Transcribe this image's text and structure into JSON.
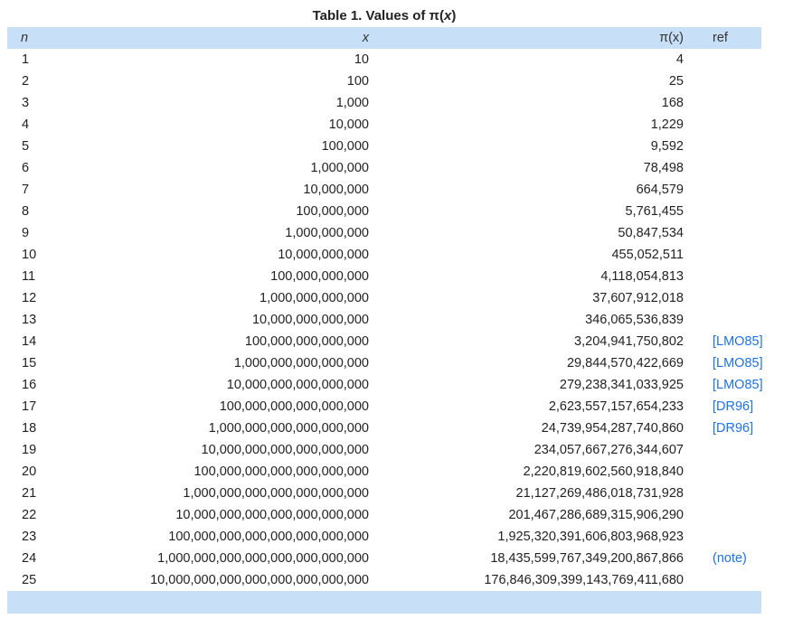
{
  "caption": {
    "prefix": "Table 1.  Values of π(",
    "var": "x",
    "suffix": ")"
  },
  "header": {
    "n": "n",
    "x": "x",
    "pi": "π(x)",
    "ref": "ref"
  },
  "rows": [
    {
      "n": "1",
      "x": "10",
      "pi": "4",
      "ref": ""
    },
    {
      "n": "2",
      "x": "100",
      "pi": "25",
      "ref": ""
    },
    {
      "n": "3",
      "x": "1,000",
      "pi": "168",
      "ref": ""
    },
    {
      "n": "4",
      "x": "10,000",
      "pi": "1,229",
      "ref": ""
    },
    {
      "n": "5",
      "x": "100,000",
      "pi": "9,592",
      "ref": ""
    },
    {
      "n": "6",
      "x": "1,000,000",
      "pi": "78,498",
      "ref": ""
    },
    {
      "n": "7",
      "x": "10,000,000",
      "pi": "664,579",
      "ref": ""
    },
    {
      "n": "8",
      "x": "100,000,000",
      "pi": "5,761,455",
      "ref": ""
    },
    {
      "n": "9",
      "x": "1,000,000,000",
      "pi": "50,847,534",
      "ref": ""
    },
    {
      "n": "10",
      "x": "10,000,000,000",
      "pi": "455,052,511",
      "ref": ""
    },
    {
      "n": "11",
      "x": "100,000,000,000",
      "pi": "4,118,054,813",
      "ref": ""
    },
    {
      "n": "12",
      "x": "1,000,000,000,000",
      "pi": "37,607,912,018",
      "ref": ""
    },
    {
      "n": "13",
      "x": "10,000,000,000,000",
      "pi": "346,065,536,839",
      "ref": ""
    },
    {
      "n": "14",
      "x": "100,000,000,000,000",
      "pi": "3,204,941,750,802",
      "ref": "[LMO85]"
    },
    {
      "n": "15",
      "x": "1,000,000,000,000,000",
      "pi": "29,844,570,422,669",
      "ref": "[LMO85]"
    },
    {
      "n": "16",
      "x": "10,000,000,000,000,000",
      "pi": "279,238,341,033,925",
      "ref": "[LMO85]"
    },
    {
      "n": "17",
      "x": "100,000,000,000,000,000",
      "pi": "2,623,557,157,654,233",
      "ref": "[DR96]"
    },
    {
      "n": "18",
      "x": "1,000,000,000,000,000,000",
      "pi": "24,739,954,287,740,860",
      "ref": "[DR96]"
    },
    {
      "n": "19",
      "x": "10,000,000,000,000,000,000",
      "pi": "234,057,667,276,344,607",
      "ref": ""
    },
    {
      "n": "20",
      "x": "100,000,000,000,000,000,000",
      "pi": "2,220,819,602,560,918,840",
      "ref": ""
    },
    {
      "n": "21",
      "x": "1,000,000,000,000,000,000,000",
      "pi": "21,127,269,486,018,731,928",
      "ref": ""
    },
    {
      "n": "22",
      "x": "10,000,000,000,000,000,000,000",
      "pi": "201,467,286,689,315,906,290",
      "ref": ""
    },
    {
      "n": "23",
      "x": "100,000,000,000,000,000,000,000",
      "pi": "1,925,320,391,606,803,968,923",
      "ref": ""
    },
    {
      "n": "24",
      "x": "1,000,000,000,000,000,000,000,000",
      "pi": "18,435,599,767,349,200,867,866",
      "ref": "(note)"
    },
    {
      "n": "25",
      "x": "10,000,000,000,000,000,000,000,000",
      "pi": "176,846,309,399,143,769,411,680",
      "ref": ""
    }
  ],
  "colors": {
    "header_bg": "#c7dff7",
    "link": "#1a73e8",
    "text": "#222222"
  }
}
